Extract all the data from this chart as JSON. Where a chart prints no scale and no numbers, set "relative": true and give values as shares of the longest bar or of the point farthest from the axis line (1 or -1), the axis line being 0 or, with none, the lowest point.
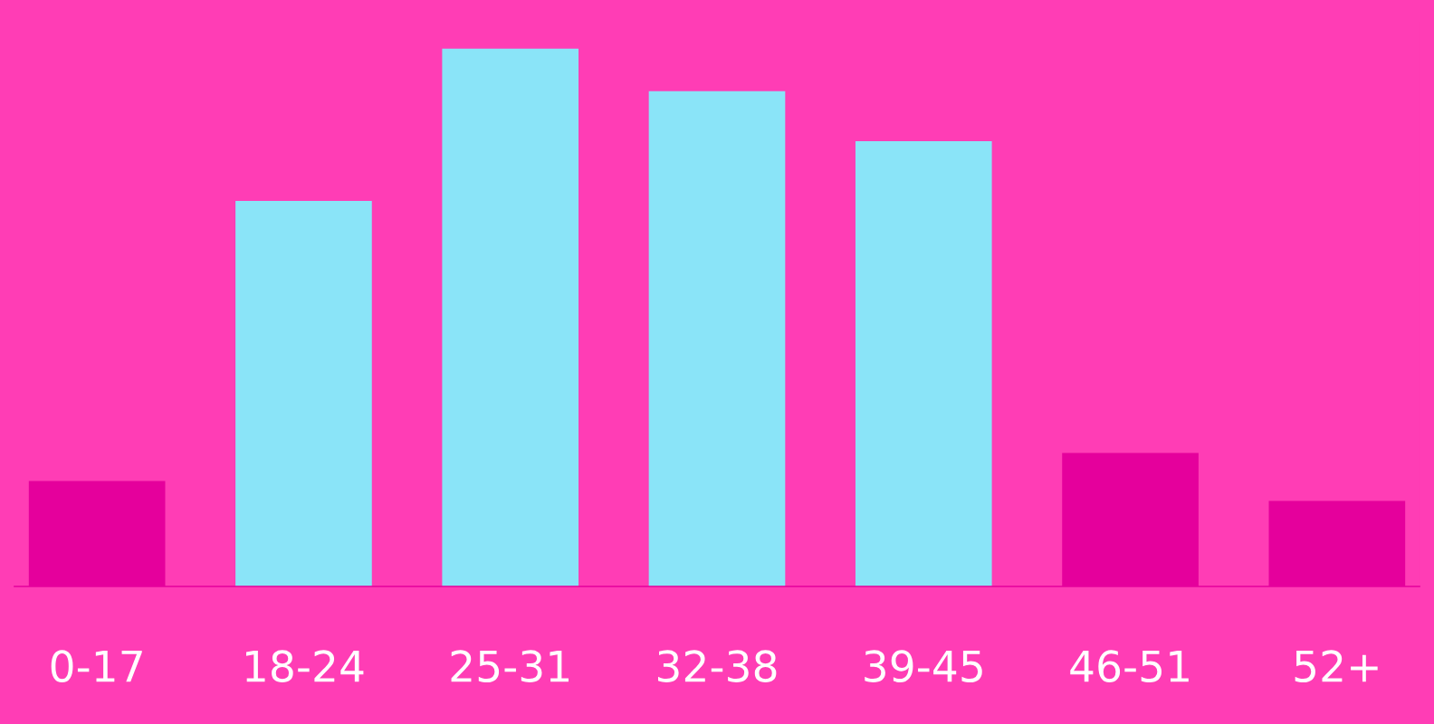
{
  "chart_data": {
    "type": "bar",
    "relative": true,
    "categories": [
      "0-17",
      "18-24",
      "25-31",
      "32-38",
      "39-45",
      "46-51",
      "52+"
    ],
    "values": [
      0.196,
      0.717,
      1,
      0.921,
      0.828,
      0.248,
      0.159
    ],
    "colors": [
      "#e5009c",
      "#8ae4f8",
      "#8ae4f8",
      "#8ae4f8",
      "#8ae4f8",
      "#e5009c",
      "#e5009c"
    ]
  }
}
